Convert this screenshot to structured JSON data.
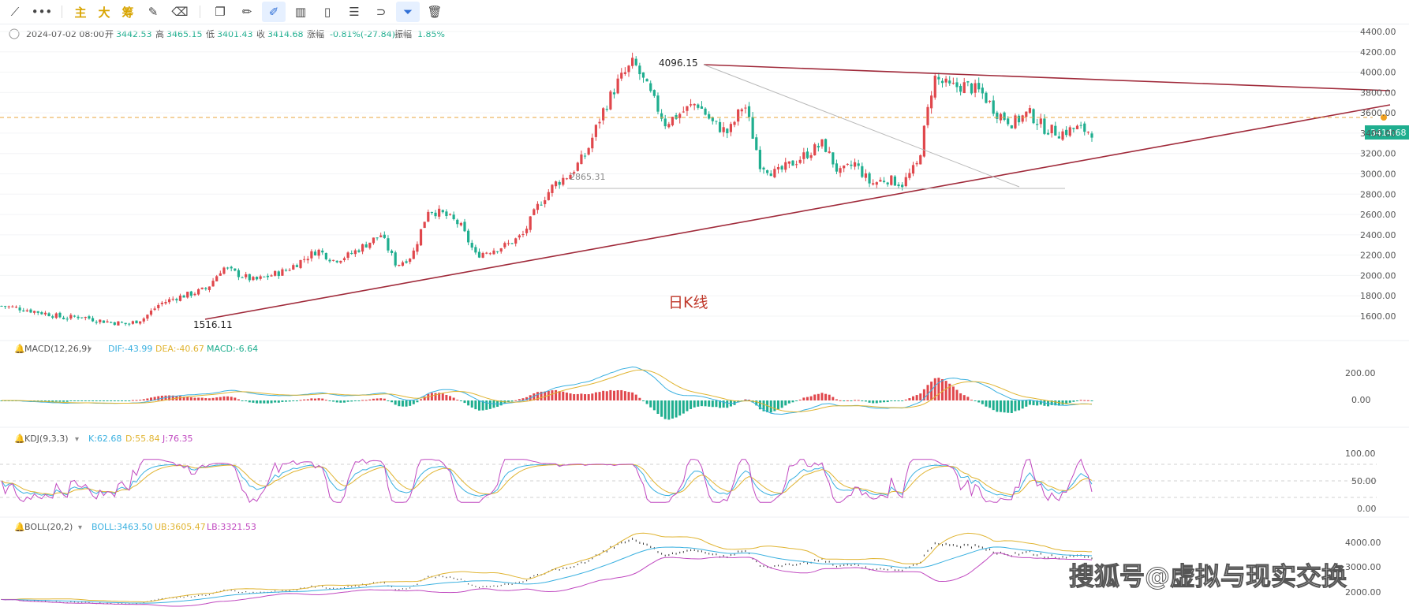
{
  "toolbar": {
    "items": [
      {
        "name": "draw-line-icon",
        "glyph": "⟋"
      },
      {
        "name": "more-icon",
        "glyph": "•••"
      },
      {
        "name": "main-chart-button",
        "glyph": "主"
      },
      {
        "name": "big-button",
        "glyph": "大"
      },
      {
        "name": "chips-button",
        "glyph": "筹"
      },
      {
        "name": "edit-icon",
        "glyph": "✎"
      },
      {
        "name": "clear-drawing-icon",
        "glyph": "⌫"
      },
      {
        "name": "copy-icon",
        "glyph": "❐"
      },
      {
        "name": "ruler-icon",
        "glyph": "✏"
      },
      {
        "name": "brush-icon",
        "glyph": "✐"
      },
      {
        "name": "candles-icon",
        "glyph": "▥"
      },
      {
        "name": "paste-icon",
        "glyph": "▯"
      },
      {
        "name": "note-icon",
        "glyph": "☰"
      },
      {
        "name": "magnet-icon",
        "glyph": "⊃"
      },
      {
        "name": "filter-icon",
        "glyph": "⏷"
      },
      {
        "name": "trash-icon",
        "glyph": "🗑"
      }
    ]
  },
  "info": {
    "date": "2024-07-02 08:00",
    "open_label": "开",
    "open": "3442.53",
    "high_label": "高",
    "high": "3465.15",
    "low_label": "低",
    "low": "3401.43",
    "close_label": "收",
    "close": "3414.68",
    "change_label": "涨幅",
    "change": "-0.81%(-27.84)",
    "amp_label": "振幅",
    "amp": "1.85%"
  },
  "main_axis": {
    "ticks": [
      "4400.00",
      "4200.00",
      "4000.00",
      "3800.00",
      "3600.00",
      "3400.00",
      "3200.00",
      "3000.00",
      "2800.00",
      "2600.00",
      "2400.00",
      "2200.00",
      "2000.00",
      "1800.00",
      "1600.00"
    ]
  },
  "annotations": {
    "high": "4096.15",
    "low": "1516.11",
    "support": "2865.31",
    "caption": "日K线",
    "price_tag": "3414.68"
  },
  "macd": {
    "title": "MACD(12,26,9)",
    "dif": "DIF:-43.99",
    "dea": "DEA:-40.67",
    "macd": "MACD:-6.64",
    "ticks": [
      "200.00",
      "0.00"
    ]
  },
  "kdj": {
    "title": "KDJ(9,3,3)",
    "k": "K:62.68",
    "d": "D:55.84",
    "j": "J:76.35",
    "ticks": [
      "100.00",
      "50.00",
      "0.00"
    ]
  },
  "boll": {
    "title": "BOLL(20,2)",
    "mid": "BOLL:3463.50",
    "ub": "UB:3605.47",
    "lb": "LB:3321.53",
    "ticks": [
      "4000.00",
      "3000.00",
      "2000.00"
    ]
  },
  "watermark": "搜狐号@虚拟与现实交换",
  "colors": {
    "up": "#e0474c",
    "down": "#1fae8f",
    "trend": "#a02a3a",
    "dif": "#39b0e0",
    "dea": "#e0b431",
    "j": "#c048c0"
  },
  "chart_data": {
    "type": "candlestick",
    "title": "日K线",
    "last": {
      "open": 3442.53,
      "high": 3465.15,
      "low": 3401.43,
      "close": 3414.68
    },
    "series": [
      {
        "name": "high_label",
        "values": [
          4096.15
        ]
      },
      {
        "name": "low_label",
        "values": [
          1516.11
        ]
      },
      {
        "name": "support_label",
        "values": [
          2865.31
        ]
      }
    ],
    "close_path": [
      1700,
      1680,
      1650,
      1620,
      1580,
      1600,
      1560,
      1540,
      1520,
      1580,
      1720,
      1780,
      1820,
      1870,
      2080,
      2010,
      1950,
      2000,
      2050,
      2150,
      2250,
      2150,
      2200,
      2300,
      2400,
      2100,
      2200,
      2650,
      2600,
      2500,
      2200,
      2250,
      2300,
      2400,
      2700,
      2900,
      3000,
      3200,
      3600,
      3900,
      4096,
      3800,
      3500,
      3600,
      3700,
      3500,
      3400,
      3700,
      3100,
      3000,
      3100,
      3200,
      3300,
      3000,
      3100,
      2900,
      2950,
      2900,
      3100,
      3950,
      3850,
      3870,
      3800,
      3600,
      3500,
      3600,
      3450,
      3400,
      3450,
      3414
    ],
    "ylim": [
      1500,
      4450
    ]
  }
}
